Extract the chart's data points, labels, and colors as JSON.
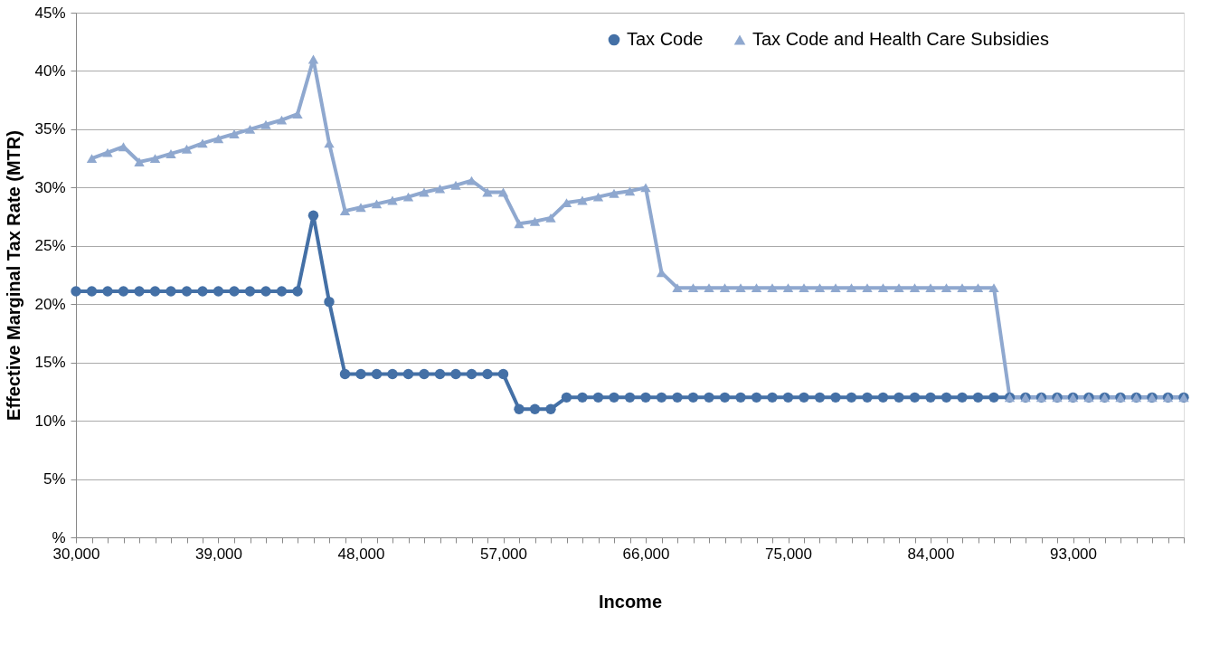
{
  "chart_data": {
    "type": "line",
    "xlabel": "Income",
    "ylabel": "Effective Marginal Tax Rate (MTR)",
    "x": [
      30000,
      31000,
      32000,
      33000,
      34000,
      35000,
      36000,
      37000,
      38000,
      39000,
      40000,
      41000,
      42000,
      43000,
      44000,
      45000,
      46000,
      47000,
      48000,
      49000,
      50000,
      51000,
      52000,
      53000,
      54000,
      55000,
      56000,
      57000,
      58000,
      59000,
      60000,
      61000,
      62000,
      63000,
      64000,
      65000,
      66000,
      67000,
      68000,
      69000,
      70000,
      71000,
      72000,
      73000,
      74000,
      75000,
      76000,
      77000,
      78000,
      79000,
      80000,
      81000,
      82000,
      83000,
      84000,
      85000,
      86000,
      87000,
      88000,
      89000,
      90000,
      91000,
      92000,
      93000,
      94000,
      95000,
      96000,
      97000,
      98000,
      99000,
      100000
    ],
    "series": [
      {
        "name": "Tax Code",
        "color": "#4470a6",
        "marker": "circle",
        "values": [
          21.1,
          21.1,
          21.1,
          21.1,
          21.1,
          21.1,
          21.1,
          21.1,
          21.1,
          21.1,
          21.1,
          21.1,
          21.1,
          21.1,
          21.1,
          27.6,
          20.2,
          14.0,
          14.0,
          14.0,
          14.0,
          14.0,
          14.0,
          14.0,
          14.0,
          14.0,
          14.0,
          14.0,
          11.0,
          11.0,
          11.0,
          12.0,
          12.0,
          12.0,
          12.0,
          12.0,
          12.0,
          12.0,
          12.0,
          12.0,
          12.0,
          12.0,
          12.0,
          12.0,
          12.0,
          12.0,
          12.0,
          12.0,
          12.0,
          12.0,
          12.0,
          12.0,
          12.0,
          12.0,
          12.0,
          12.0,
          12.0,
          12.0,
          12.0,
          12.0,
          12.0,
          12.0,
          12.0,
          12.0,
          12.0,
          12.0,
          12.0,
          12.0,
          12.0,
          12.0,
          12.0
        ]
      },
      {
        "name": "Tax Code and Health Care Subsidies",
        "color": "#8fa8cf",
        "marker": "triangle",
        "values": [
          null,
          32.5,
          33.0,
          33.5,
          32.2,
          32.5,
          32.9,
          33.3,
          33.8,
          34.2,
          34.6,
          35.0,
          35.4,
          35.8,
          36.3,
          41.0,
          33.8,
          28.0,
          28.3,
          28.6,
          28.9,
          29.2,
          29.6,
          29.9,
          30.2,
          30.6,
          29.6,
          29.6,
          26.9,
          27.1,
          27.4,
          28.7,
          28.9,
          29.2,
          29.5,
          29.7,
          30.0,
          22.7,
          21.4,
          21.4,
          21.4,
          21.4,
          21.4,
          21.4,
          21.4,
          21.4,
          21.4,
          21.4,
          21.4,
          21.4,
          21.4,
          21.4,
          21.4,
          21.4,
          21.4,
          21.4,
          21.4,
          21.4,
          21.4,
          12.0,
          12.0,
          12.0,
          12.0,
          12.0,
          12.0,
          12.0,
          12.0,
          12.0,
          12.0,
          12.0,
          12.0
        ]
      }
    ],
    "xlim": [
      30000,
      100000
    ],
    "xticks": [
      {
        "value": 30000,
        "label": "30,000"
      },
      {
        "value": 31000,
        "label": null
      },
      {
        "value": 32000,
        "label": null
      },
      {
        "value": 33000,
        "label": null
      },
      {
        "value": 34000,
        "label": null
      },
      {
        "value": 35000,
        "label": null
      },
      {
        "value": 36000,
        "label": null
      },
      {
        "value": 37000,
        "label": null
      },
      {
        "value": 38000,
        "label": null
      },
      {
        "value": 39000,
        "label": "39,000"
      },
      {
        "value": 40000,
        "label": null
      },
      {
        "value": 41000,
        "label": null
      },
      {
        "value": 42000,
        "label": null
      },
      {
        "value": 43000,
        "label": null
      },
      {
        "value": 44000,
        "label": null
      },
      {
        "value": 45000,
        "label": null
      },
      {
        "value": 46000,
        "label": null
      },
      {
        "value": 47000,
        "label": null
      },
      {
        "value": 48000,
        "label": "48,000"
      },
      {
        "value": 49000,
        "label": null
      },
      {
        "value": 50000,
        "label": null
      },
      {
        "value": 51000,
        "label": null
      },
      {
        "value": 52000,
        "label": null
      },
      {
        "value": 53000,
        "label": null
      },
      {
        "value": 54000,
        "label": null
      },
      {
        "value": 55000,
        "label": null
      },
      {
        "value": 56000,
        "label": null
      },
      {
        "value": 57000,
        "label": "57,000"
      },
      {
        "value": 58000,
        "label": null
      },
      {
        "value": 59000,
        "label": null
      },
      {
        "value": 60000,
        "label": null
      },
      {
        "value": 61000,
        "label": null
      },
      {
        "value": 62000,
        "label": null
      },
      {
        "value": 63000,
        "label": null
      },
      {
        "value": 64000,
        "label": null
      },
      {
        "value": 65000,
        "label": null
      },
      {
        "value": 66000,
        "label": "66,000"
      },
      {
        "value": 67000,
        "label": null
      },
      {
        "value": 68000,
        "label": null
      },
      {
        "value": 69000,
        "label": null
      },
      {
        "value": 70000,
        "label": null
      },
      {
        "value": 71000,
        "label": null
      },
      {
        "value": 72000,
        "label": null
      },
      {
        "value": 73000,
        "label": null
      },
      {
        "value": 74000,
        "label": null
      },
      {
        "value": 75000,
        "label": "75,000"
      },
      {
        "value": 76000,
        "label": null
      },
      {
        "value": 77000,
        "label": null
      },
      {
        "value": 78000,
        "label": null
      },
      {
        "value": 79000,
        "label": null
      },
      {
        "value": 80000,
        "label": null
      },
      {
        "value": 81000,
        "label": null
      },
      {
        "value": 82000,
        "label": null
      },
      {
        "value": 83000,
        "label": null
      },
      {
        "value": 84000,
        "label": "84,000"
      },
      {
        "value": 85000,
        "label": null
      },
      {
        "value": 86000,
        "label": null
      },
      {
        "value": 87000,
        "label": null
      },
      {
        "value": 88000,
        "label": null
      },
      {
        "value": 89000,
        "label": null
      },
      {
        "value": 90000,
        "label": null
      },
      {
        "value": 91000,
        "label": null
      },
      {
        "value": 92000,
        "label": null
      },
      {
        "value": 93000,
        "label": "93,000"
      },
      {
        "value": 94000,
        "label": null
      },
      {
        "value": 95000,
        "label": null
      },
      {
        "value": 96000,
        "label": null
      },
      {
        "value": 97000,
        "label": null
      },
      {
        "value": 98000,
        "label": null
      },
      {
        "value": 99000,
        "label": null
      },
      {
        "value": 100000,
        "label": null
      }
    ],
    "ylim": [
      0,
      45
    ],
    "yticks": [
      {
        "value": 0,
        "label": "%"
      },
      {
        "value": 5,
        "label": "5%"
      },
      {
        "value": 10,
        "label": "10%"
      },
      {
        "value": 15,
        "label": "15%"
      },
      {
        "value": 20,
        "label": "20%"
      },
      {
        "value": 25,
        "label": "25%"
      },
      {
        "value": 30,
        "label": "30%"
      },
      {
        "value": 35,
        "label": "35%"
      },
      {
        "value": 40,
        "label": "40%"
      },
      {
        "value": 45,
        "label": "45%"
      }
    ],
    "grid": "y",
    "legend": "top right",
    "line_style": "solid"
  }
}
